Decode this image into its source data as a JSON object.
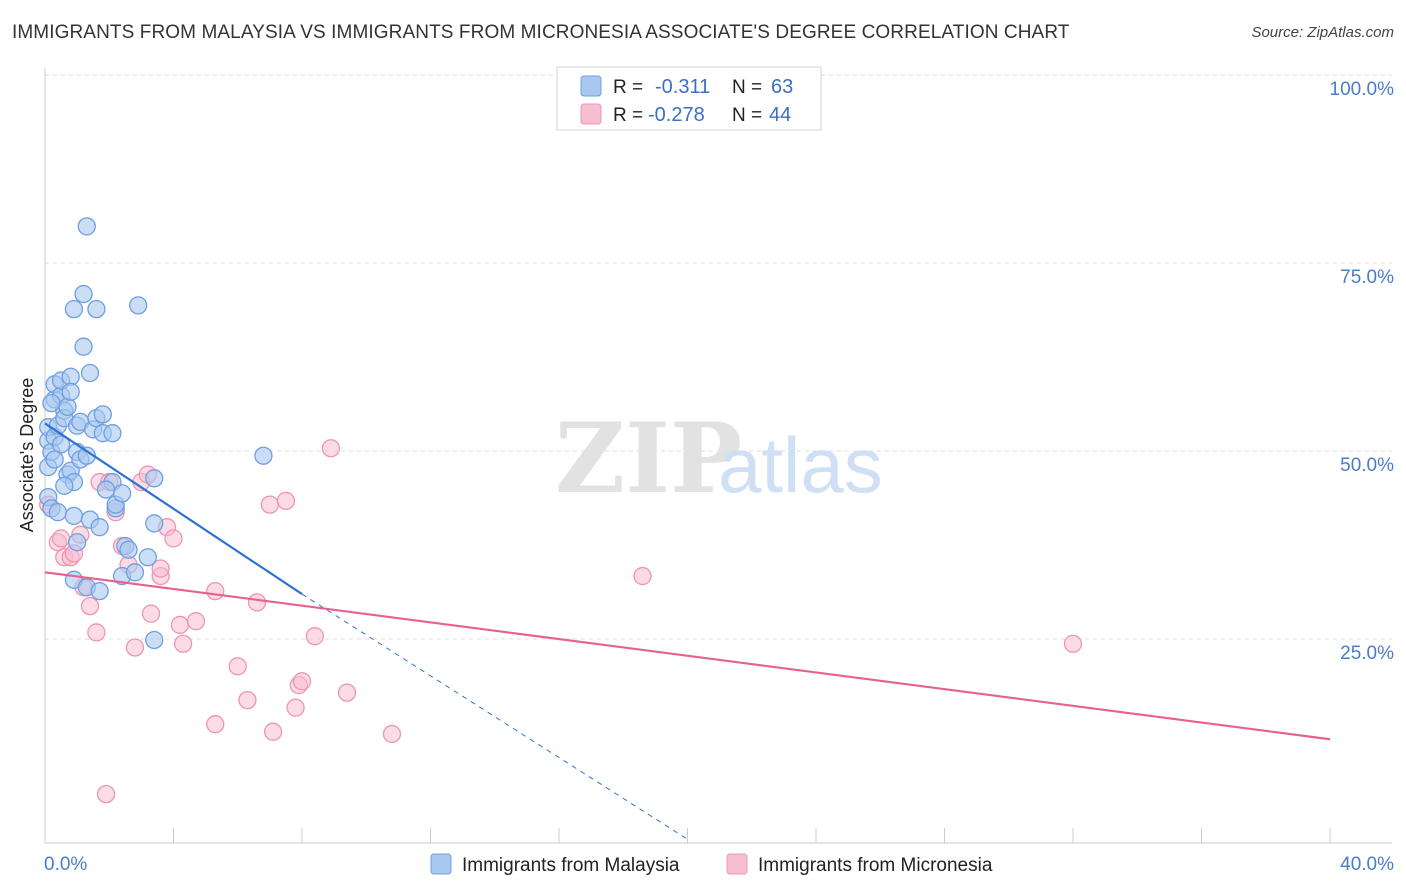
{
  "title": "IMMIGRANTS FROM MALAYSIA VS IMMIGRANTS FROM MICRONESIA ASSOCIATE'S DEGREE CORRELATION CHART",
  "source": "Source: ZipAtlas.com",
  "watermark": {
    "zip": "ZIP",
    "atlas": "atlas"
  },
  "colors": {
    "malaysia_fill": "#a9c8f0",
    "malaysia_stroke": "#6f9fe0",
    "malaysia_line": "#2e73d4",
    "micronesia_fill": "#f7bed0",
    "micronesia_stroke": "#ee95b3",
    "micronesia_line": "#e66090",
    "tick_text": "#4a7cc9",
    "grid": "#dddddd"
  },
  "legend": {
    "rows": [
      {
        "r_label": "R =",
        "r_value": "-0.311",
        "n_label": "N =",
        "n_value": "63"
      },
      {
        "r_label": "R =",
        "r_value": "-0.278",
        "n_label": "N =",
        "n_value": "44"
      }
    ]
  },
  "bottom_legend": {
    "malaysia": "Immigrants from Malaysia",
    "micronesia": "Immigrants from Micronesia"
  },
  "chart_data": {
    "type": "scatter",
    "title": "IMMIGRANTS FROM MALAYSIA VS IMMIGRANTS FROM MICRONESIA ASSOCIATE'S DEGREE CORRELATION CHART",
    "xlabel": "",
    "ylabel": "Associate's Degree",
    "xlim": [
      0,
      40
    ],
    "ylim": [
      0,
      102
    ],
    "x_tick_labels": [
      {
        "value": 0,
        "label": "0.0%"
      },
      {
        "value": 40,
        "label": "40.0%"
      }
    ],
    "y_tick_labels": [
      {
        "value": 25,
        "label": "25.0%"
      },
      {
        "value": 50,
        "label": "50.0%"
      },
      {
        "value": 75,
        "label": "75.0%"
      },
      {
        "value": 100,
        "label": "100.0%"
      }
    ],
    "grid": true,
    "series": [
      {
        "name": "Immigrants from Malaysia",
        "r": -0.311,
        "n": 63,
        "trend": {
          "x0": 0.0,
          "y0": 55.8,
          "x1": 8.0,
          "y1": 33.1,
          "dash_to_x": 20.0,
          "dash_to_y": 0.5
        },
        "points": [
          [
            0.1,
            46.0
          ],
          [
            0.1,
            50.0
          ],
          [
            0.1,
            53.5
          ],
          [
            0.1,
            55.3
          ],
          [
            0.2,
            44.5
          ],
          [
            0.2,
            52.0
          ],
          [
            0.3,
            59.0
          ],
          [
            0.3,
            54.0
          ],
          [
            0.3,
            61.0
          ],
          [
            0.4,
            55.5
          ],
          [
            0.4,
            44.0
          ],
          [
            0.5,
            59.5
          ],
          [
            0.5,
            61.5
          ],
          [
            0.5,
            53.0
          ],
          [
            0.6,
            57.5
          ],
          [
            0.6,
            56.5
          ],
          [
            0.7,
            58.0
          ],
          [
            0.7,
            49.0
          ],
          [
            0.8,
            62.0
          ],
          [
            0.8,
            60.0
          ],
          [
            0.8,
            49.5
          ],
          [
            0.9,
            43.5
          ],
          [
            0.9,
            35.0
          ],
          [
            0.9,
            71.0
          ],
          [
            0.9,
            48.0
          ],
          [
            1.0,
            52.0
          ],
          [
            1.0,
            55.5
          ],
          [
            1.1,
            51.0
          ],
          [
            1.1,
            56.0
          ],
          [
            1.2,
            66.0
          ],
          [
            1.2,
            73.0
          ],
          [
            1.3,
            51.5
          ],
          [
            1.3,
            82.0
          ],
          [
            1.3,
            34.0
          ],
          [
            1.4,
            43.0
          ],
          [
            1.4,
            62.5
          ],
          [
            1.5,
            55.0
          ],
          [
            1.6,
            71.0
          ],
          [
            1.6,
            56.5
          ],
          [
            1.7,
            33.5
          ],
          [
            1.7,
            42.0
          ],
          [
            1.8,
            54.5
          ],
          [
            1.8,
            57.0
          ],
          [
            2.1,
            48.0
          ],
          [
            2.1,
            54.5
          ],
          [
            2.2,
            44.5
          ],
          [
            2.2,
            45.0
          ],
          [
            2.4,
            46.5
          ],
          [
            2.4,
            35.5
          ],
          [
            2.5,
            39.5
          ],
          [
            2.6,
            39.0
          ],
          [
            2.8,
            36.0
          ],
          [
            2.9,
            71.5
          ],
          [
            3.2,
            38.0
          ],
          [
            3.4,
            42.5
          ],
          [
            3.4,
            27.0
          ],
          [
            3.4,
            48.5
          ],
          [
            6.8,
            51.5
          ],
          [
            1.0,
            40.0
          ],
          [
            0.6,
            47.5
          ],
          [
            0.3,
            51.0
          ],
          [
            0.2,
            58.5
          ],
          [
            1.9,
            47.0
          ]
        ]
      },
      {
        "name": "Immigrants from Micronesia",
        "r": -0.278,
        "n": 44,
        "trend": {
          "x0": 0.0,
          "y0": 36.0,
          "x1": 40.0,
          "y1": 13.8
        },
        "points": [
          [
            0.1,
            45.0
          ],
          [
            0.4,
            40.0
          ],
          [
            0.5,
            40.5
          ],
          [
            0.6,
            38.0
          ],
          [
            0.8,
            38.0
          ],
          [
            0.9,
            38.5
          ],
          [
            1.1,
            41.0
          ],
          [
            1.2,
            34.0
          ],
          [
            1.4,
            31.5
          ],
          [
            1.6,
            28.0
          ],
          [
            1.7,
            48.0
          ],
          [
            2.0,
            48.0
          ],
          [
            2.2,
            44.0
          ],
          [
            2.4,
            39.5
          ],
          [
            2.6,
            37.0
          ],
          [
            2.8,
            26.0
          ],
          [
            3.0,
            48.0
          ],
          [
            3.2,
            49.0
          ],
          [
            3.3,
            30.5
          ],
          [
            3.6,
            35.5
          ],
          [
            3.6,
            36.5
          ],
          [
            3.8,
            42.0
          ],
          [
            4.0,
            40.5
          ],
          [
            4.2,
            29.0
          ],
          [
            4.3,
            26.5
          ],
          [
            4.7,
            29.5
          ],
          [
            5.3,
            15.8
          ],
          [
            5.3,
            33.5
          ],
          [
            6.0,
            23.5
          ],
          [
            6.3,
            19.0
          ],
          [
            6.6,
            32.0
          ],
          [
            7.0,
            45.0
          ],
          [
            7.1,
            14.8
          ],
          [
            7.5,
            45.5
          ],
          [
            7.8,
            18.0
          ],
          [
            7.9,
            21.0
          ],
          [
            8.0,
            21.5
          ],
          [
            8.4,
            27.5
          ],
          [
            8.9,
            52.5
          ],
          [
            9.4,
            20.0
          ],
          [
            10.8,
            14.5
          ],
          [
            18.6,
            35.5
          ],
          [
            32.0,
            26.5
          ],
          [
            1.9,
            6.5
          ]
        ]
      }
    ]
  }
}
